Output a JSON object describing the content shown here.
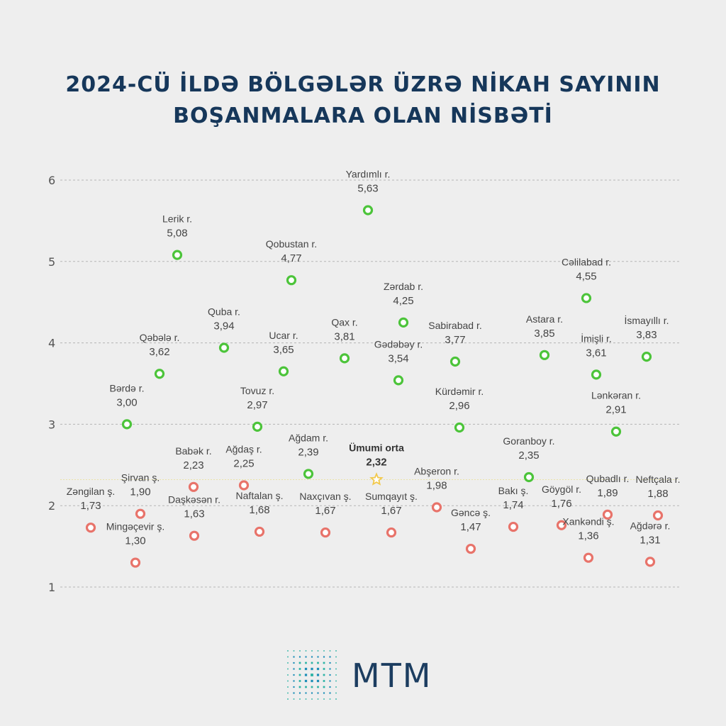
{
  "title": {
    "line1": "2024-CÜ İLDƏ BÖLGƏLƏR ÜZRƏ NİKAH SAYININ",
    "line2": "BOŞANMALARA OLAN NİSBƏTİ"
  },
  "logo": {
    "text": "MTM"
  },
  "colors": {
    "above": "#4cc43a",
    "below": "#e8736a",
    "average": "#f2c94c",
    "text": "#444444",
    "title": "#16375a"
  },
  "chart_data": {
    "type": "scatter",
    "title": "2024-CÜ İLDƏ BÖLGƏLƏR ÜZRƏ NİKAH SAYININ BOŞANMALARA OLAN NİSBƏTİ",
    "ylim": [
      1,
      6
    ],
    "yticks": [
      "1",
      "2",
      "3",
      "4",
      "5",
      "6"
    ],
    "grid": true,
    "average": {
      "label": "Ümumi orta",
      "value": 2.32,
      "display": "2,32"
    },
    "points": [
      {
        "name": "Yardımlı r.",
        "value": 5.63,
        "display": "5,63",
        "group": "above"
      },
      {
        "name": "Lerik r.",
        "value": 5.08,
        "display": "5,08",
        "group": "above"
      },
      {
        "name": "Qobustan r.",
        "value": 4.77,
        "display": "4,77",
        "group": "above"
      },
      {
        "name": "Cəlilabad r.",
        "value": 4.55,
        "display": "4,55",
        "group": "above"
      },
      {
        "name": "Zərdab r.",
        "value": 4.25,
        "display": "4,25",
        "group": "above"
      },
      {
        "name": "Quba r.",
        "value": 3.94,
        "display": "3,94",
        "group": "above"
      },
      {
        "name": "Qax r.",
        "value": 3.81,
        "display": "3,81",
        "group": "above"
      },
      {
        "name": "Astara r.",
        "value": 3.85,
        "display": "3,85",
        "group": "above"
      },
      {
        "name": "İsmayıllı r.",
        "value": 3.83,
        "display": "3,83",
        "group": "above"
      },
      {
        "name": "Sabirabad r.",
        "value": 3.77,
        "display": "3,77",
        "group": "above"
      },
      {
        "name": "Ucar r.",
        "value": 3.65,
        "display": "3,65",
        "group": "above"
      },
      {
        "name": "Qəbələ r.",
        "value": 3.62,
        "display": "3,62",
        "group": "above"
      },
      {
        "name": "İmişli r.",
        "value": 3.61,
        "display": "3,61",
        "group": "above"
      },
      {
        "name": "Gədəbəy r.",
        "value": 3.54,
        "display": "3,54",
        "group": "above"
      },
      {
        "name": "Bərdə r.",
        "value": 3.0,
        "display": "3,00",
        "group": "above"
      },
      {
        "name": "Tovuz r.",
        "value": 2.97,
        "display": "2,97",
        "group": "above"
      },
      {
        "name": "Kürdəmir r.",
        "value": 2.96,
        "display": "2,96",
        "group": "above"
      },
      {
        "name": "Lənkəran r.",
        "value": 2.91,
        "display": "2,91",
        "group": "above"
      },
      {
        "name": "Ağdam r.",
        "value": 2.39,
        "display": "2,39",
        "group": "above"
      },
      {
        "name": "Goranboy r.",
        "value": 2.35,
        "display": "2,35",
        "group": "above"
      },
      {
        "name": "Babək r.",
        "value": 2.23,
        "display": "2,23",
        "group": "below"
      },
      {
        "name": "Ağdaş r.",
        "value": 2.25,
        "display": "2,25",
        "group": "below"
      },
      {
        "name": "Abşeron r.",
        "value": 1.98,
        "display": "1,98",
        "group": "below"
      },
      {
        "name": "Şirvan ş.",
        "value": 1.9,
        "display": "1,90",
        "group": "below"
      },
      {
        "name": "Qubadlı r.",
        "value": 1.89,
        "display": "1,89",
        "group": "below"
      },
      {
        "name": "Neftçala r.",
        "value": 1.88,
        "display": "1,88",
        "group": "below"
      },
      {
        "name": "Göygöl r.",
        "value": 1.76,
        "display": "1,76",
        "group": "below"
      },
      {
        "name": "Bakı ş.",
        "value": 1.74,
        "display": "1,74",
        "group": "below"
      },
      {
        "name": "Zəngilan ş.",
        "value": 1.73,
        "display": "1,73",
        "group": "below"
      },
      {
        "name": "Naftalan ş.",
        "value": 1.68,
        "display": "1,68",
        "group": "below"
      },
      {
        "name": "Naxçıvan ş.",
        "value": 1.67,
        "display": "1,67",
        "group": "below"
      },
      {
        "name": "Sumqayıt ş.",
        "value": 1.67,
        "display": "1,67",
        "group": "below"
      },
      {
        "name": "Daşkəsən r.",
        "value": 1.63,
        "display": "1,63",
        "group": "below"
      },
      {
        "name": "Gəncə ş.",
        "value": 1.47,
        "display": "1,47",
        "group": "below"
      },
      {
        "name": "Xankəndi ş.",
        "value": 1.36,
        "display": "1,36",
        "group": "below"
      },
      {
        "name": "Ağdərə r.",
        "value": 1.31,
        "display": "1,31",
        "group": "below"
      },
      {
        "name": "Mingəçevir ş.",
        "value": 1.3,
        "display": "1,30",
        "group": "below"
      }
    ]
  }
}
